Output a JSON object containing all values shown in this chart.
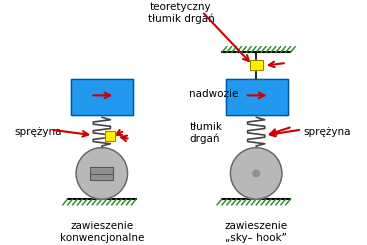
{
  "bg_color": "#ffffff",
  "text_teoretyczny": "teoretyczny\ntłumik drgań",
  "text_nadwozie": "nadwozie",
  "text_tlumik": "tłumik\ndrgań",
  "text_sprezyna1": "sprężyna",
  "text_sprezyna2": "sprężyna",
  "text_label1": "zawieszenie\nkonwencjonalne",
  "text_label2": "zawieszenie\n„sky– hook”",
  "blue_color": "#2299ee",
  "yellow_color": "#ffee00",
  "green_color": "#228822",
  "arrow_color": "#cc0000",
  "wheel_gray": "#b8b8b8",
  "spring_color": "#444444"
}
